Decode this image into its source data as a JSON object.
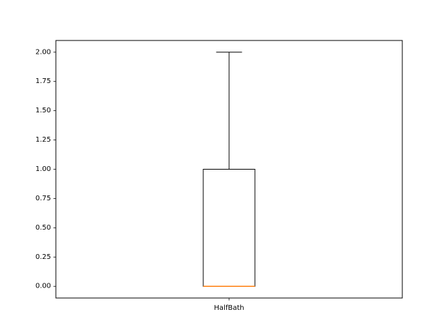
{
  "chart_data": {
    "type": "box",
    "categories": [
      "HalfBath"
    ],
    "boxes": [
      {
        "name": "HalfBath",
        "whisker_low": 0,
        "q1": 0,
        "median": 0,
        "q3": 1,
        "whisker_high": 2
      }
    ],
    "title": "",
    "xlabel": "",
    "ylabel": "",
    "ylim": [
      -0.1,
      2.1
    ],
    "yticks": [
      0,
      0.25,
      0.5,
      0.75,
      1,
      1.25,
      1.5,
      1.75,
      2
    ],
    "ytick_labels": [
      "0.00",
      "0.25",
      "0.50",
      "0.75",
      "1.00",
      "1.25",
      "1.50",
      "1.75",
      "2.00"
    ],
    "grid": false,
    "colors": {
      "box": "#000000",
      "median": "#ff7f0e",
      "background": "#ffffff"
    }
  }
}
